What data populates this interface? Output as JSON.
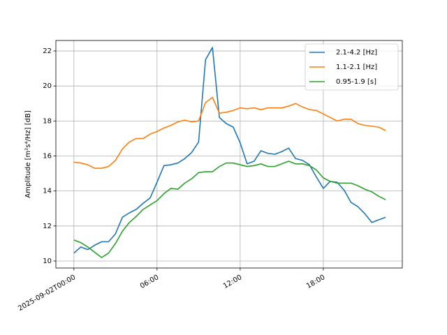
{
  "chart_data": {
    "type": "line",
    "title": "",
    "xlabel": "",
    "ylabel": "Amplitude [m²s⁴/Hz] [dB]",
    "x_unit": "hours",
    "x": [
      0,
      0.5,
      1,
      1.5,
      2,
      2.5,
      3,
      3.5,
      4,
      4.5,
      5,
      5.5,
      6,
      6.5,
      7,
      7.5,
      8,
      8.5,
      9,
      9.5,
      10,
      10.5,
      11,
      11.5,
      12,
      12.5,
      13,
      13.5,
      14,
      14.5,
      15,
      15.5,
      16,
      16.5,
      17,
      17.5,
      18,
      18.5,
      19,
      19.5,
      20,
      20.5,
      21,
      21.5,
      22,
      22.5
    ],
    "xlim": [
      -1.3,
      23.7
    ],
    "ylim": [
      9.6,
      22.6
    ],
    "x_ticks": [
      {
        "value": 0,
        "label": "2025-09-02T00:00"
      },
      {
        "value": 6,
        "label": "06:00"
      },
      {
        "value": 12,
        "label": "12:00"
      },
      {
        "value": 18,
        "label": "18:00"
      }
    ],
    "y_ticks": [
      {
        "value": 10,
        "label": "10"
      },
      {
        "value": 12,
        "label": "12"
      },
      {
        "value": 14,
        "label": "14"
      },
      {
        "value": 16,
        "label": "16"
      },
      {
        "value": 18,
        "label": "18"
      },
      {
        "value": 20,
        "label": "20"
      },
      {
        "value": 22,
        "label": "22"
      }
    ],
    "grid": true,
    "legend_position": "top-right",
    "series": [
      {
        "name": "2.1-4.2 [Hz]",
        "color": "#1f77b4",
        "values": [
          10.45,
          10.8,
          10.65,
          10.9,
          11.1,
          11.1,
          11.55,
          12.5,
          12.75,
          12.95,
          13.3,
          13.6,
          14.5,
          15.45,
          15.5,
          15.6,
          15.85,
          16.2,
          16.8,
          21.5,
          22.2,
          18.2,
          17.85,
          17.65,
          16.75,
          15.55,
          15.7,
          16.3,
          16.15,
          16.1,
          16.25,
          16.45,
          15.85,
          15.75,
          15.5,
          14.8,
          14.15,
          14.55,
          14.5,
          14.05,
          13.35,
          13.1,
          12.7,
          12.2,
          12.35,
          12.5
        ]
      },
      {
        "name": "1.1-2.1 [Hz]",
        "color": "#ff7f0e",
        "values": [
          15.65,
          15.6,
          15.5,
          15.3,
          15.3,
          15.4,
          15.75,
          16.4,
          16.8,
          17.0,
          17.0,
          17.25,
          17.4,
          17.6,
          17.75,
          17.95,
          18.05,
          17.95,
          18.0,
          19.05,
          19.35,
          18.45,
          18.5,
          18.6,
          18.75,
          18.7,
          18.75,
          18.65,
          18.75,
          18.75,
          18.75,
          18.85,
          19.0,
          18.8,
          18.65,
          18.6,
          18.4,
          18.2,
          18.0,
          18.1,
          18.1,
          17.85,
          17.75,
          17.7,
          17.65,
          17.45
        ]
      },
      {
        "name": "0.95-1.9 [s]",
        "color": "#2ca02c",
        "values": [
          11.2,
          11.05,
          10.8,
          10.5,
          10.2,
          10.45,
          11.0,
          11.7,
          12.2,
          12.55,
          12.95,
          13.2,
          13.45,
          13.85,
          14.15,
          14.1,
          14.45,
          14.7,
          15.05,
          15.1,
          15.1,
          15.4,
          15.6,
          15.6,
          15.5,
          15.4,
          15.45,
          15.55,
          15.4,
          15.4,
          15.55,
          15.7,
          15.55,
          15.55,
          15.45,
          15.2,
          14.75,
          14.55,
          14.45,
          14.45,
          14.45,
          14.3,
          14.1,
          13.95,
          13.7,
          13.5
        ]
      }
    ]
  }
}
